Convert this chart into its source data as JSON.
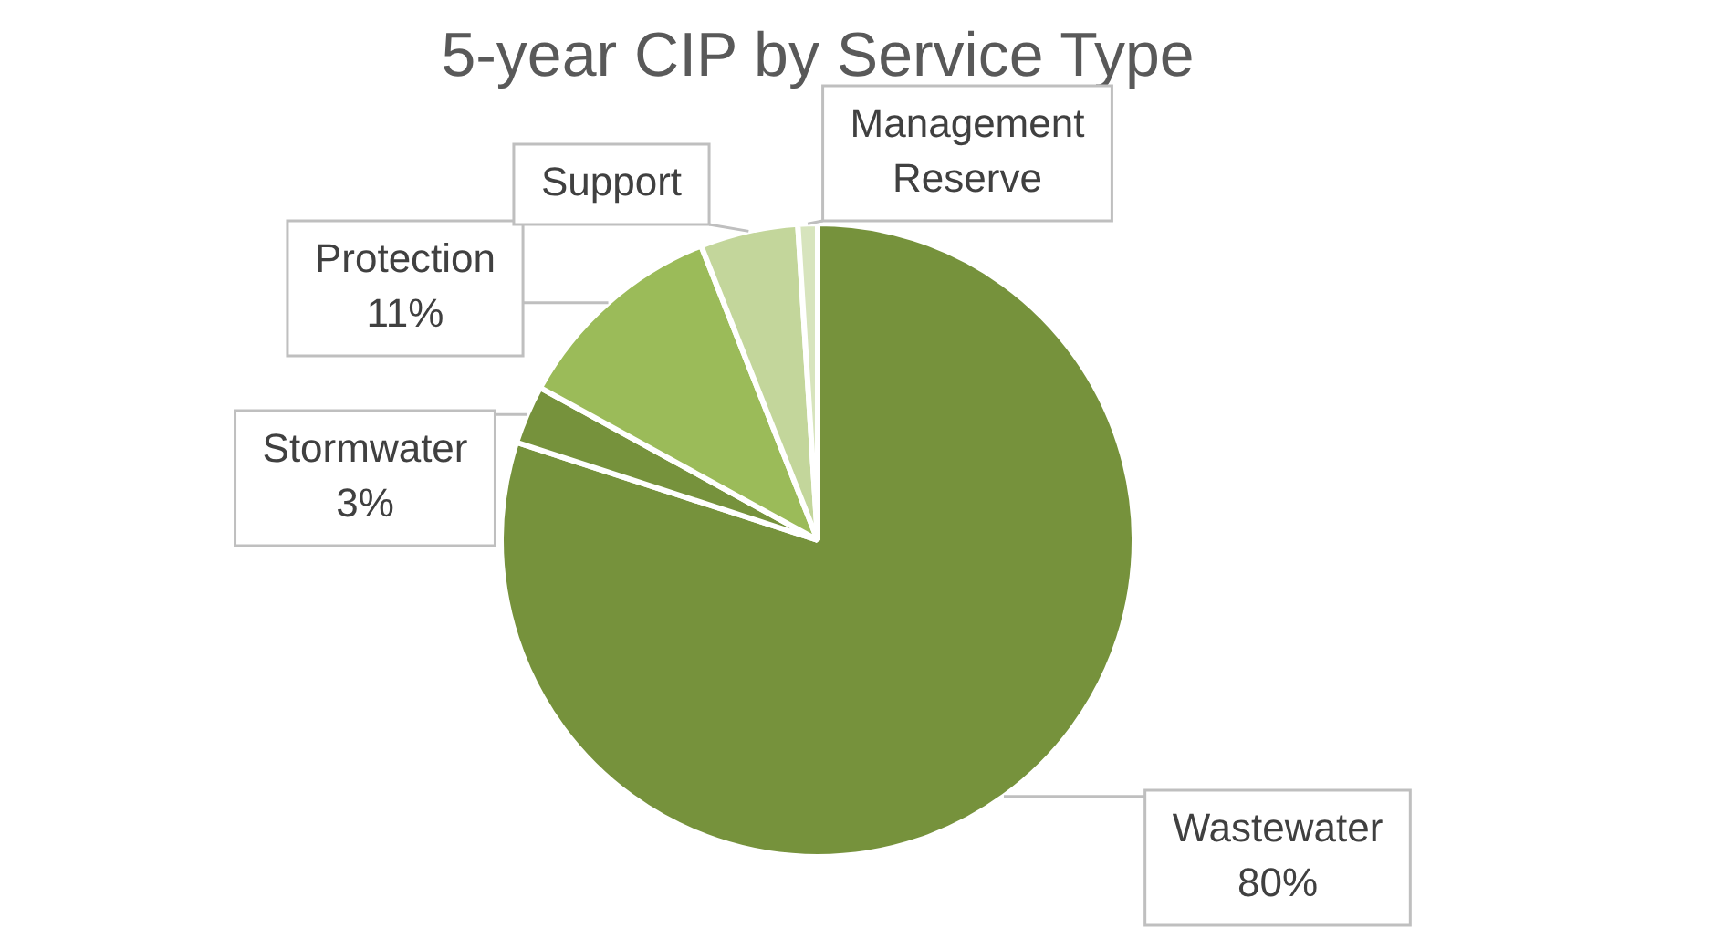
{
  "chart_data": {
    "type": "pie",
    "title": "5-year CIP by Service Type",
    "categories": [
      "Wastewater",
      "Stormwater",
      "Protection",
      "Support",
      "Management Reserve"
    ],
    "values": [
      80,
      3,
      11,
      5,
      1
    ],
    "value_labels": [
      "80%",
      "3%",
      "11%",
      null,
      null
    ],
    "colors": [
      "#76923c",
      "#76923c",
      "#9bbb59",
      "#c3d69b",
      "#d7e4bd"
    ],
    "legend": false
  }
}
